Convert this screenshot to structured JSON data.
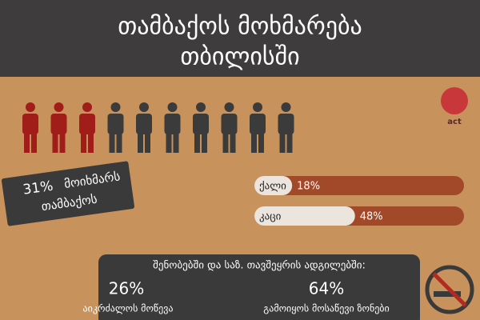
{
  "header": {
    "title_line1": "თამბაქოს მოხმარება",
    "title_line2": "თბილისში"
  },
  "logo": "act",
  "callout": {
    "value_label": "31%",
    "text_line1": "მოიხმარს",
    "text_line2": "თამბაქოს"
  },
  "bars": {
    "xlim": [
      0,
      100
    ],
    "items": [
      {
        "label": "ქალი",
        "value": 18,
        "value_label": "18%"
      },
      {
        "label": "კაცი",
        "value": 48,
        "value_label": "48%"
      }
    ]
  },
  "panel": {
    "heading": "შენობებში და საზ. თავშეყრის ადგილებში:",
    "stats": [
      {
        "value_label": "26%",
        "text": "აიკრძალოს მოწევა"
      },
      {
        "value_label": "64%",
        "text": "გამოიყოს მოსაწევი ზონები"
      }
    ]
  }
}
